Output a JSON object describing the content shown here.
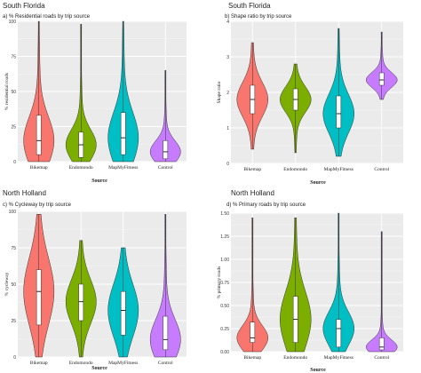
{
  "chart_data": [
    {
      "type": "violin",
      "region": "South Florida",
      "title": "a) % Residential roads by trip source",
      "xlabel": "Source",
      "ylabel": "% residential roads",
      "ylim": [
        0,
        100
      ],
      "yticks": [
        0,
        25,
        50,
        75,
        100
      ],
      "categories": [
        "Bikemap",
        "Endomondo",
        "MapMyFitness",
        "Control"
      ],
      "colors": [
        "#f8766d",
        "#7cae00",
        "#00bfc4",
        "#c77cff"
      ],
      "grid": true,
      "stats": [
        {
          "min": 0,
          "q1": 5,
          "median": 15,
          "q3": 33,
          "max": 100
        },
        {
          "min": 0,
          "q1": 3,
          "median": 12,
          "q3": 21,
          "max": 98
        },
        {
          "min": 0,
          "q1": 5,
          "median": 17,
          "q3": 35,
          "max": 100
        },
        {
          "min": 0,
          "q1": 2,
          "median": 7,
          "q3": 15,
          "max": 65
        }
      ]
    },
    {
      "type": "violin",
      "region": "South Florida",
      "title": "b) Shape ratio by trip source",
      "xlabel": "Source",
      "ylabel": "Shape ratio",
      "ylim": [
        0,
        4
      ],
      "yticks": [
        0,
        1,
        2,
        3,
        4
      ],
      "categories": [
        "Bikemap",
        "Endomondo",
        "MapMyFitness",
        "Control"
      ],
      "colors": [
        "#f8766d",
        "#7cae00",
        "#00bfc4",
        "#c77cff"
      ],
      "grid": true,
      "stats": [
        {
          "min": 0.4,
          "q1": 1.4,
          "median": 1.8,
          "q3": 2.2,
          "max": 3.4
        },
        {
          "min": 0.3,
          "q1": 1.5,
          "median": 1.8,
          "q3": 2.1,
          "max": 2.8
        },
        {
          "min": 0.2,
          "q1": 1.0,
          "median": 1.4,
          "q3": 1.9,
          "max": 3.8
        },
        {
          "min": 1.8,
          "q1": 2.2,
          "median": 2.35,
          "q3": 2.55,
          "max": 3.7
        }
      ]
    },
    {
      "type": "violin",
      "region": "North Holland",
      "title": "c) % Cycleway by trip source",
      "xlabel": "Source",
      "ylabel": "% cycleway",
      "ylim": [
        0,
        100
      ],
      "yticks": [
        0,
        25,
        50,
        75,
        100
      ],
      "categories": [
        "Bikemap",
        "Endomondo",
        "MapMyFitness",
        "Control"
      ],
      "colors": [
        "#f8766d",
        "#7cae00",
        "#00bfc4",
        "#c77cff"
      ],
      "grid": true,
      "stats": [
        {
          "min": 0,
          "q1": 22,
          "median": 45,
          "q3": 60,
          "max": 98
        },
        {
          "min": 0,
          "q1": 25,
          "median": 38,
          "q3": 50,
          "max": 80
        },
        {
          "min": 0,
          "q1": 15,
          "median": 32,
          "q3": 45,
          "max": 75
        },
        {
          "min": 0,
          "q1": 5,
          "median": 12,
          "q3": 28,
          "max": 98
        }
      ]
    },
    {
      "type": "violin",
      "region": "North Holland",
      "title": "d) % Primary roads by trip source",
      "xlabel": "Source",
      "ylabel": "% primary roads",
      "ylim": [
        0,
        1.5
      ],
      "yticks": [
        0,
        0.25,
        0.5,
        0.75,
        1,
        1.25,
        1.5
      ],
      "ytick_labels": [
        "0.00",
        "0.25",
        "0.50",
        "0.75",
        "1.00",
        "1.25",
        "1.50"
      ],
      "categories": [
        "Bikemap",
        "Endomondo",
        "MapMyFitness",
        "Control"
      ],
      "colors": [
        "#f8766d",
        "#7cae00",
        "#00bfc4",
        "#c77cff"
      ],
      "grid": true,
      "stats": [
        {
          "min": 0,
          "q1": 0.1,
          "median": 0.15,
          "q3": 0.32,
          "max": 1.45
        },
        {
          "min": 0,
          "q1": 0.1,
          "median": 0.35,
          "q3": 0.6,
          "max": 1.45
        },
        {
          "min": 0,
          "q1": 0.05,
          "median": 0.25,
          "q3": 0.35,
          "max": 1.5
        },
        {
          "min": 0,
          "q1": 0.02,
          "median": 0.05,
          "q3": 0.15,
          "max": 1.3
        }
      ]
    }
  ]
}
